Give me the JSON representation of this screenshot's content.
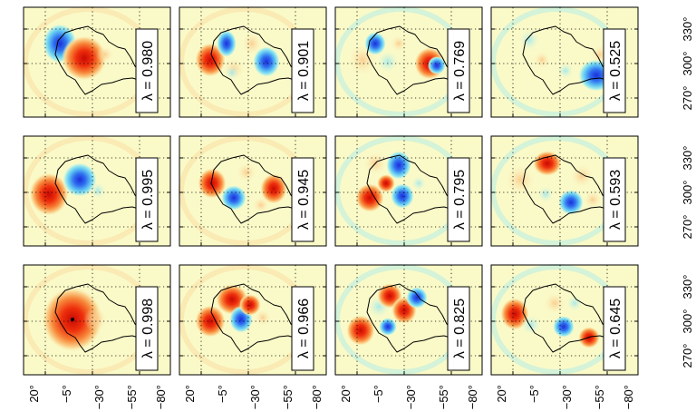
{
  "figure": {
    "lambda_symbol": "λ =",
    "colors": {
      "background": "#fafac8",
      "positive": "#e8200a",
      "negative": "#1f3fe0",
      "ring_warm": "#fbd79b",
      "ring_cool": "#a6ecea"
    },
    "rows": [
      [
        "0.980",
        "0.901",
        "0.769",
        "0.525"
      ],
      [
        "0.995",
        "0.945",
        "0.795",
        "0.593"
      ],
      [
        "0.998",
        "0.966",
        "0.825",
        "0.645"
      ]
    ],
    "side_ticks": [
      "270°",
      "300°",
      "330°"
    ],
    "bottom_ticks": [
      "20°",
      "−5°",
      "−30°",
      "−55°",
      "−80°"
    ]
  }
}
